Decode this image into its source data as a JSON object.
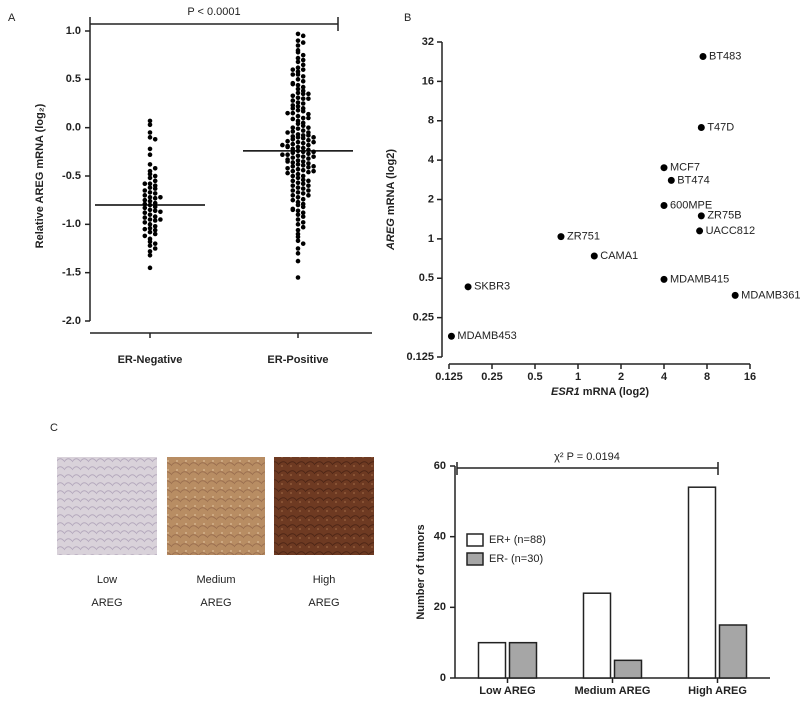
{
  "panel_labels": [
    "A",
    "B",
    "C"
  ],
  "images": [
    {
      "caption": [
        "Low",
        "AREG"
      ]
    },
    {
      "caption": [
        "Medium",
        "AREG"
      ]
    },
    {
      "caption": [
        "High",
        "AREG"
      ]
    }
  ],
  "chart_data": [
    {
      "type": "dotplot",
      "y_label": "Relative AREG mRNA (log₂)",
      "annotation": "P < 0.0001",
      "categories": [
        "ER-Negative",
        "ER-Positive"
      ],
      "color": "#000000",
      "ylim": [
        -2,
        1
      ],
      "yticks": [
        {
          "value": 1,
          "label": "1.0"
        },
        {
          "value": 0.5,
          "label": "0.5"
        },
        {
          "value": 0,
          "label": "0.0"
        },
        {
          "value": -0.5,
          "label": "-0.5"
        },
        {
          "value": -1,
          "label": "-1.0"
        },
        {
          "value": -1.5,
          "label": "-1.5"
        },
        {
          "value": -2,
          "label": "-2.0"
        }
      ],
      "means": [
        -0.8,
        -0.24
      ],
      "groups": [
        [
          0.07,
          0.03,
          -0.05,
          -0.1,
          -0.12,
          -0.22,
          -0.28,
          -0.38,
          -0.42,
          -0.45,
          -0.48,
          -0.5,
          -0.52,
          -0.55,
          -0.58,
          -0.6,
          -0.62,
          -0.63,
          -0.65,
          -0.67,
          -0.68,
          -0.7,
          -0.72,
          -0.73,
          -0.75,
          -0.76,
          -0.78,
          -0.79,
          -0.8,
          -0.82,
          -0.83,
          -0.85,
          -0.86,
          -0.88,
          -0.9,
          -0.92,
          -0.93,
          -0.95,
          -0.96,
          -0.98,
          -1.0,
          -1.02,
          -1.04,
          -1.06,
          -1.08,
          -1.1,
          -1.12,
          -1.15,
          -1.18,
          -1.2,
          -1.22,
          -1.25,
          -1.28,
          -1.32,
          -1.45,
          -0.58,
          -0.72,
          -0.87,
          -0.95,
          -1.05
        ],
        [
          0.97,
          0.95,
          0.9,
          0.88,
          0.85,
          0.8,
          0.78,
          0.75,
          0.72,
          0.7,
          0.68,
          0.65,
          0.62,
          0.6,
          0.58,
          0.55,
          0.53,
          0.5,
          0.48,
          0.46,
          0.44,
          0.42,
          0.4,
          0.38,
          0.36,
          0.35,
          0.33,
          0.31,
          0.3,
          0.28,
          0.26,
          0.25,
          0.23,
          0.22,
          0.2,
          0.18,
          0.17,
          0.15,
          0.14,
          0.12,
          0.1,
          0.09,
          0.07,
          0.05,
          0.04,
          0.02,
          0.0,
          -0.01,
          -0.03,
          -0.04,
          -0.05,
          -0.07,
          -0.08,
          -0.09,
          -0.1,
          -0.11,
          -0.12,
          -0.13,
          -0.14,
          -0.15,
          -0.16,
          -0.17,
          -0.18,
          -0.19,
          -0.2,
          -0.21,
          -0.22,
          -0.23,
          -0.24,
          -0.25,
          -0.26,
          -0.27,
          -0.28,
          -0.29,
          -0.3,
          -0.31,
          -0.32,
          -0.33,
          -0.34,
          -0.35,
          -0.36,
          -0.37,
          -0.38,
          -0.39,
          -0.4,
          -0.41,
          -0.42,
          -0.43,
          -0.44,
          -0.45,
          -0.46,
          -0.47,
          -0.48,
          -0.5,
          -0.52,
          -0.54,
          -0.55,
          -0.57,
          -0.58,
          -0.6,
          -0.62,
          -0.63,
          -0.65,
          -0.67,
          -0.68,
          -0.7,
          -0.72,
          -0.74,
          -0.75,
          -0.77,
          -0.79,
          -0.8,
          -0.82,
          -0.84,
          -0.86,
          -0.88,
          -0.9,
          -0.92,
          -0.95,
          -0.98,
          -1.0,
          -1.03,
          -1.06,
          -1.1,
          -1.13,
          -1.17,
          -1.2,
          -1.25,
          -1.3,
          -1.38,
          -1.55,
          0.6,
          0.45,
          0.3,
          0.2,
          0.1,
          0.0,
          -0.1,
          -0.2,
          -0.3,
          -0.4,
          -0.5,
          -0.15,
          -0.25,
          -0.35,
          -0.05,
          -0.45,
          -0.6,
          -0.7,
          -0.85,
          0.15,
          0.35,
          0.55,
          -0.65,
          -0.55,
          -0.28,
          -0.18,
          -0.08
        ]
      ]
    },
    {
      "type": "scatter",
      "x_label_gene": "ESR1",
      "x_label": " mRNA (log2)",
      "y_label_gene": "AREG",
      "y_label": " mRNA (log2)",
      "log_x": true,
      "log_y": true,
      "color": "#000000",
      "xlim": [
        0.125,
        16
      ],
      "xticks": [
        0.125,
        0.25,
        0.5,
        1,
        2,
        4,
        8,
        16
      ],
      "ylim": [
        0.125,
        32
      ],
      "yticks": [
        0.125,
        0.25,
        0.5,
        1,
        2,
        4,
        8,
        16,
        32
      ],
      "labels": [
        "BT483",
        "T47D",
        "MCF7",
        "BT474",
        "600MPE",
        "ZR75B",
        "UACC812",
        "ZR751",
        "CAMA1",
        "MDAMB415",
        "MDAMB361",
        "SKBR3",
        "MDAMB453"
      ],
      "x": [
        7.5,
        7.3,
        4.0,
        4.5,
        4.0,
        7.3,
        7.1,
        0.76,
        1.3,
        4.0,
        12.6,
        0.17,
        0.13
      ],
      "y": [
        24.8,
        7.1,
        3.5,
        2.8,
        1.8,
        1.5,
        1.15,
        1.04,
        0.74,
        0.49,
        0.37,
        0.43,
        0.18
      ]
    },
    {
      "type": "bar",
      "y_label": "Number of tumors",
      "annotation": "χ² P = 0.0194",
      "legend": "center left",
      "categories": [
        "Low AREG",
        "Medium AREG",
        "High AREG"
      ],
      "ylim": [
        0,
        60
      ],
      "yticks": [
        0,
        20,
        40,
        60
      ],
      "series": [
        {
          "name": "ER+ (n=88)",
          "color": "#ffffff",
          "values": [
            10,
            24,
            54
          ]
        },
        {
          "name": "ER- (n=30)",
          "color": "#a6a6a6",
          "values": [
            10,
            5,
            15
          ]
        }
      ]
    }
  ]
}
